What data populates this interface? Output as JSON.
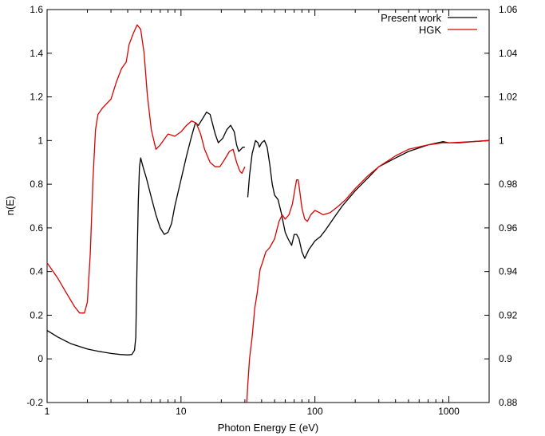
{
  "chart_data": {
    "type": "line",
    "xlabel": "Photon Energy E (eV)",
    "ylabel": "n(E)",
    "xscale": "log",
    "xlim": [
      1,
      2000
    ],
    "ylim": [
      -0.2,
      1.6
    ],
    "y2lim": [
      0.88,
      1.06
    ],
    "grid": false,
    "legend": "top-right",
    "xticks": [
      1,
      10,
      100,
      1000
    ],
    "xtick_labels": [
      "1",
      "10",
      "100",
      "1000"
    ],
    "yticks": [
      -0.2,
      0,
      0.2,
      0.4,
      0.6,
      0.8,
      1,
      1.2,
      1.4,
      1.6
    ],
    "ytick_labels": [
      "-0.2",
      "0",
      "0.2",
      "0.4",
      "0.6",
      "0.8",
      "1",
      "1.2",
      "1.4",
      "1.6"
    ],
    "y2ticks": [
      0.88,
      0.9,
      0.92,
      0.94,
      0.96,
      0.98,
      1,
      1.02,
      1.04,
      1.06
    ],
    "y2tick_labels": [
      "0.88",
      "0.9",
      "0.92",
      "0.94",
      "0.96",
      "0.98",
      "1",
      "1.02",
      "1.04",
      "1.06"
    ],
    "series": [
      {
        "name": "Present work",
        "color": "#000000",
        "segments": [
          [
            [
              1.0,
              0.13
            ],
            [
              1.2,
              0.1
            ],
            [
              1.5,
              0.07
            ],
            [
              2.0,
              0.045
            ],
            [
              2.5,
              0.033
            ],
            [
              3.0,
              0.025
            ],
            [
              3.5,
              0.02
            ],
            [
              4.0,
              0.018
            ],
            [
              4.3,
              0.02
            ],
            [
              4.5,
              0.04
            ],
            [
              4.6,
              0.1
            ],
            [
              4.7,
              0.45
            ],
            [
              4.8,
              0.72
            ],
            [
              4.9,
              0.88
            ],
            [
              5.0,
              0.92
            ],
            [
              5.2,
              0.88
            ],
            [
              5.5,
              0.83
            ],
            [
              6.0,
              0.74
            ],
            [
              6.5,
              0.66
            ],
            [
              7.0,
              0.6
            ],
            [
              7.5,
              0.57
            ],
            [
              8.0,
              0.58
            ],
            [
              8.5,
              0.62
            ],
            [
              9.0,
              0.7
            ],
            [
              10.0,
              0.82
            ],
            [
              11.0,
              0.93
            ],
            [
              12.0,
              1.02
            ],
            [
              12.8,
              1.08
            ],
            [
              13.5,
              1.07
            ],
            [
              14.5,
              1.1
            ],
            [
              15.5,
              1.13
            ],
            [
              16.5,
              1.12
            ],
            [
              18.0,
              1.03
            ],
            [
              19.0,
              0.99
            ],
            [
              20.5,
              1.01
            ],
            [
              22.0,
              1.05
            ],
            [
              23.5,
              1.07
            ],
            [
              25.0,
              1.04
            ],
            [
              26.0,
              0.98
            ],
            [
              27.0,
              0.95
            ],
            [
              28.0,
              0.96
            ],
            [
              29.0,
              0.97
            ],
            [
              30.0,
              0.97
            ]
          ],
          [
            [
              31.5,
              0.74
            ],
            [
              32.5,
              0.84
            ],
            [
              34.0,
              0.94
            ],
            [
              36.0,
              1.0
            ],
            [
              37.5,
              0.99
            ],
            [
              38.5,
              0.97
            ],
            [
              40.0,
              0.99
            ],
            [
              42.0,
              1.0
            ],
            [
              44.0,
              0.97
            ],
            [
              46.0,
              0.89
            ],
            [
              48.0,
              0.8
            ],
            [
              50.0,
              0.75
            ],
            [
              53.0,
              0.73
            ],
            [
              56.0,
              0.67
            ],
            [
              60.0,
              0.58
            ],
            [
              63.0,
              0.55
            ],
            [
              67.0,
              0.52
            ],
            [
              70.0,
              0.57
            ],
            [
              73.0,
              0.57
            ],
            [
              76.0,
              0.55
            ],
            [
              80.0,
              0.49
            ],
            [
              84.0,
              0.46
            ],
            [
              90.0,
              0.5
            ],
            [
              100.0,
              0.54
            ],
            [
              110.0,
              0.56
            ],
            [
              120.0,
              0.59
            ],
            [
              140.0,
              0.65
            ],
            [
              160.0,
              0.7
            ],
            [
              200.0,
              0.77
            ],
            [
              250.0,
              0.83
            ],
            [
              300.0,
              0.88
            ],
            [
              400.0,
              0.92
            ],
            [
              500.0,
              0.95
            ],
            [
              700.0,
              0.98
            ],
            [
              900.0,
              0.995
            ],
            [
              1000.0,
              0.99
            ],
            [
              1200.0,
              0.99
            ],
            [
              1500.0,
              0.995
            ],
            [
              2000.0,
              1.0
            ]
          ]
        ]
      },
      {
        "name": "HGK",
        "color": "#dd0000",
        "segments": [
          [
            [
              1.0,
              0.44
            ],
            [
              1.2,
              0.37
            ],
            [
              1.4,
              0.3
            ],
            [
              1.6,
              0.24
            ],
            [
              1.75,
              0.21
            ],
            [
              1.9,
              0.21
            ],
            [
              2.0,
              0.26
            ],
            [
              2.1,
              0.48
            ],
            [
              2.2,
              0.82
            ],
            [
              2.3,
              1.05
            ],
            [
              2.4,
              1.12
            ],
            [
              2.6,
              1.15
            ],
            [
              3.0,
              1.19
            ],
            [
              3.3,
              1.27
            ],
            [
              3.6,
              1.33
            ],
            [
              3.9,
              1.36
            ],
            [
              4.1,
              1.44
            ],
            [
              4.4,
              1.49
            ],
            [
              4.7,
              1.53
            ],
            [
              5.0,
              1.51
            ],
            [
              5.3,
              1.4
            ],
            [
              5.6,
              1.21
            ],
            [
              6.0,
              1.05
            ],
            [
              6.5,
              0.96
            ],
            [
              7.0,
              0.98
            ],
            [
              8.0,
              1.03
            ],
            [
              9.0,
              1.02
            ],
            [
              10.0,
              1.04
            ],
            [
              11.0,
              1.07
            ],
            [
              12.0,
              1.09
            ],
            [
              13.0,
              1.08
            ],
            [
              14.0,
              1.03
            ],
            [
              15.0,
              0.96
            ],
            [
              16.5,
              0.9
            ],
            [
              18.0,
              0.88
            ],
            [
              19.5,
              0.88
            ],
            [
              21.0,
              0.91
            ],
            [
              23.0,
              0.95
            ],
            [
              24.5,
              0.96
            ],
            [
              26.0,
              0.9
            ],
            [
              27.5,
              0.86
            ],
            [
              28.5,
              0.85
            ],
            [
              30.0,
              0.88
            ]
          ],
          [
            [
              31.0,
              -0.2
            ],
            [
              31.5,
              -0.12
            ],
            [
              32.5,
              0.0
            ],
            [
              34.0,
              0.1
            ],
            [
              35.5,
              0.23
            ],
            [
              37.0,
              0.3
            ],
            [
              39.0,
              0.41
            ],
            [
              41.0,
              0.45
            ],
            [
              43.0,
              0.49
            ],
            [
              46.0,
              0.51
            ],
            [
              50.0,
              0.55
            ],
            [
              54.0,
              0.63
            ],
            [
              57.0,
              0.66
            ],
            [
              60.0,
              0.64
            ],
            [
              64.0,
              0.66
            ],
            [
              68.0,
              0.71
            ],
            [
              71.0,
              0.78
            ],
            [
              73.0,
              0.82
            ],
            [
              75.0,
              0.82
            ],
            [
              77.0,
              0.77
            ],
            [
              80.0,
              0.69
            ],
            [
              84.0,
              0.64
            ],
            [
              88.0,
              0.63
            ],
            [
              93.0,
              0.66
            ],
            [
              100.0,
              0.68
            ],
            [
              108.0,
              0.67
            ],
            [
              115.0,
              0.66
            ],
            [
              130.0,
              0.67
            ],
            [
              150.0,
              0.7
            ],
            [
              170.0,
              0.73
            ],
            [
              200.0,
              0.78
            ],
            [
              250.0,
              0.84
            ],
            [
              300.0,
              0.88
            ],
            [
              400.0,
              0.93
            ],
            [
              500.0,
              0.96
            ],
            [
              700.0,
              0.98
            ],
            [
              900.0,
              0.99
            ],
            [
              1000.0,
              0.99
            ],
            [
              1500.0,
              0.995
            ],
            [
              2000.0,
              1.0
            ]
          ]
        ]
      }
    ]
  }
}
